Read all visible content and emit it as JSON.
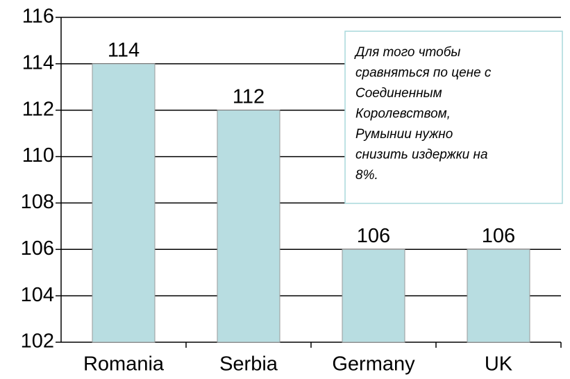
{
  "chart_data": {
    "type": "bar",
    "categories": [
      "Romania",
      "Serbia",
      "Germany",
      "UK"
    ],
    "values": [
      114,
      112,
      106,
      106
    ],
    "color": "#b8dde1",
    "ylim": [
      102,
      116
    ],
    "yticks": [
      102,
      104,
      106,
      108,
      110,
      112,
      114,
      116
    ],
    "grid": true,
    "annotation": [
      "Для того чтобы",
      "сравняться по цене с",
      "Соединенным",
      "Королевством,",
      "Румынии нужно",
      "снизить издержки на",
      "8%."
    ]
  }
}
